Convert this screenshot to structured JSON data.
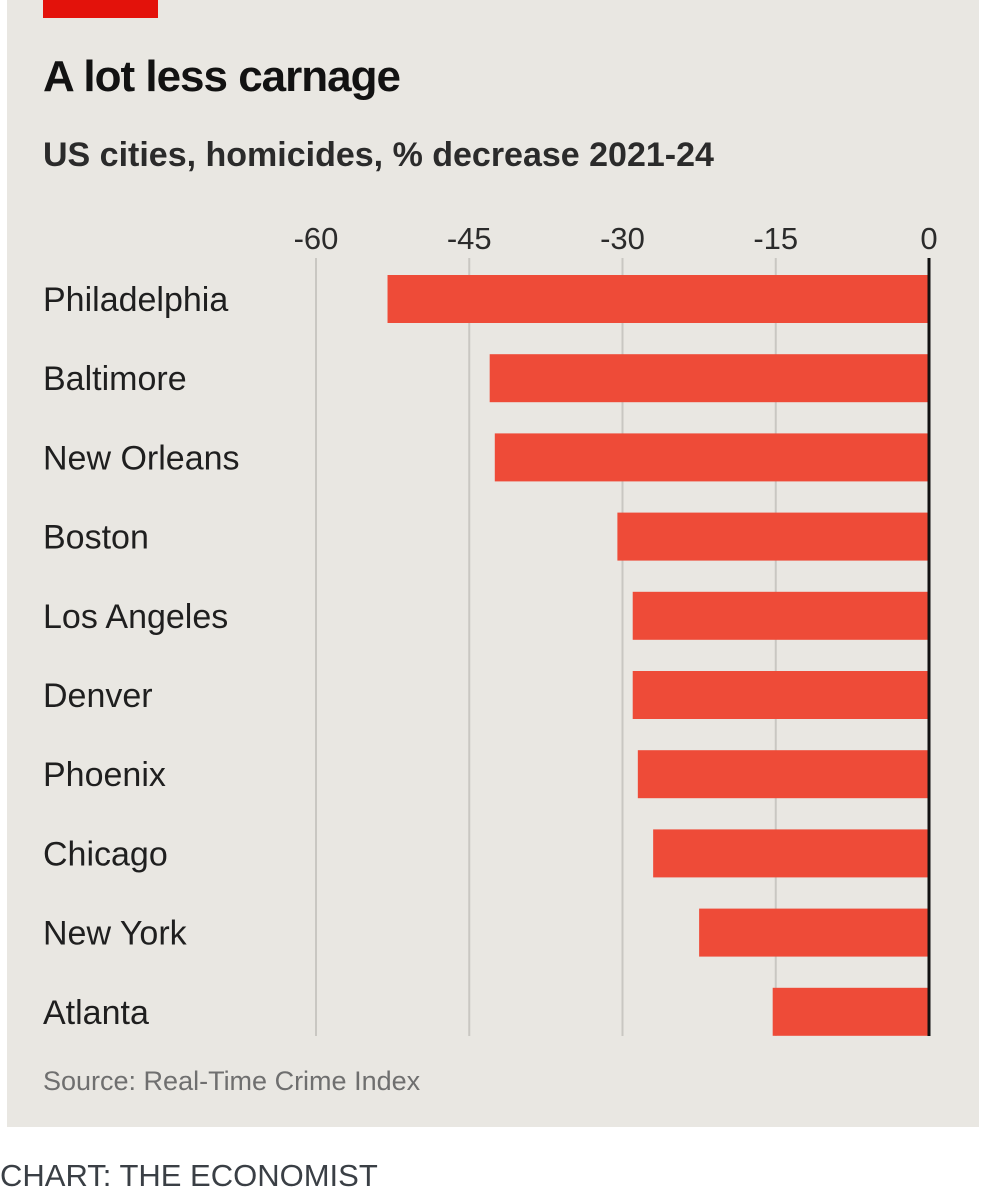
{
  "chart_data": {
    "type": "bar",
    "orientation": "horizontal",
    "title": "A lot less carnage",
    "subtitle": "US cities, homicides, % decrease 2021-24",
    "categories": [
      "Philadelphia",
      "Baltimore",
      "New Orleans",
      "Boston",
      "Los Angeles",
      "Denver",
      "Phoenix",
      "Chicago",
      "New York",
      "Atlanta"
    ],
    "values": [
      -53,
      -43,
      -42.5,
      -30.5,
      -29,
      -29,
      -28.5,
      -27,
      -22.5,
      -15.3
    ],
    "xticks": [
      -60,
      -45,
      -30,
      -15,
      0
    ],
    "xlim": [
      -60,
      0
    ],
    "grid": true,
    "bar_color": "#ee4b38",
    "source": "Source: Real-Time Crime Index"
  },
  "credit": "CHART: THE ECONOMIST",
  "colors": {
    "panel": "#e9e7e2",
    "accent": "#e3120b",
    "bar": "#ee4b38",
    "grid": "#c9c7c2",
    "zero_line": "#121212"
  }
}
